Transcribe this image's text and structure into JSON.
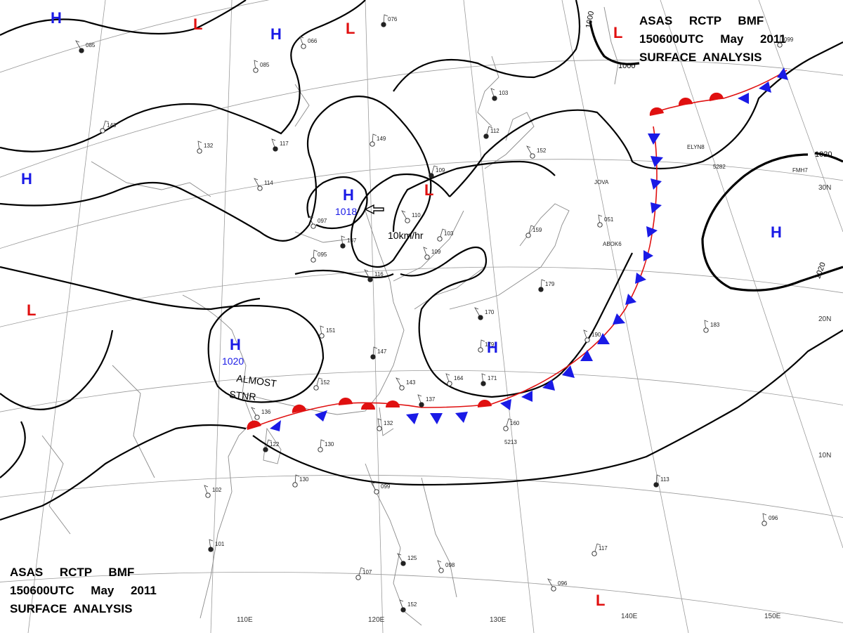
{
  "header_top": {
    "line1": "ASAS     RCTP     BMF",
    "line2": "150600UTC     May     2011",
    "line3": "SURFACE  ANALYSIS"
  },
  "header_bottom": {
    "line1": "ASAS     RCTP     BMF",
    "line2": "150600UTC     May     2011",
    "line3": "SURFACE  ANALYSIS"
  },
  "colors": {
    "high": "#1a1ae6",
    "low": "#e01010",
    "isobar": "#000000",
    "grid": "#9a9a9a"
  },
  "pressure_centers": [
    {
      "id": "h1",
      "type": "H",
      "label": "H"
    },
    {
      "id": "h2",
      "type": "H",
      "label": "H"
    },
    {
      "id": "h3",
      "type": "H",
      "label": "H"
    },
    {
      "id": "h4",
      "type": "H",
      "label": "H",
      "value": "1018"
    },
    {
      "id": "h5",
      "type": "H",
      "label": "H",
      "value": "1020"
    },
    {
      "id": "h6",
      "type": "H",
      "label": "H"
    },
    {
      "id": "h7",
      "type": "H",
      "label": "H"
    },
    {
      "id": "l1",
      "type": "L",
      "label": "L"
    },
    {
      "id": "l2",
      "type": "L",
      "label": "L"
    },
    {
      "id": "l3",
      "type": "L",
      "label": "L"
    },
    {
      "id": "l4",
      "type": "L",
      "label": "L"
    },
    {
      "id": "l5",
      "type": "L",
      "label": "L"
    },
    {
      "id": "l6",
      "type": "L",
      "label": "L"
    }
  ],
  "isobar_labels": [
    "1000",
    "1000",
    "1020",
    "1020"
  ],
  "annotations": {
    "movement": "10km/hr",
    "almost": "ALMOST",
    "stnr": "STNR"
  },
  "longitude_labels": [
    "110E",
    "120E",
    "130E",
    "140E",
    "150E"
  ],
  "latitude_labels": [
    "30N",
    "20N",
    "10N"
  ],
  "station_values": [
    "085",
    "066",
    "085",
    "076",
    "143",
    "114",
    "117",
    "132",
    "149",
    "109",
    "110",
    "097",
    "107",
    "095",
    "103",
    "116",
    "109",
    "151",
    "147",
    "152",
    "143",
    "137",
    "132",
    "130",
    "122",
    "136",
    "164",
    "171",
    "179",
    "160",
    "170",
    "190",
    "183",
    "179",
    "159",
    "152",
    "103",
    "051",
    "099",
    "112",
    "099",
    "102",
    "101",
    "130",
    "107",
    "125",
    "098",
    "096",
    "113",
    "117",
    "096",
    "152"
  ],
  "station_ids": [
    "JOVA",
    "ELYN8",
    "ABOK6",
    "FMH7",
    "5213",
    "5282"
  ]
}
